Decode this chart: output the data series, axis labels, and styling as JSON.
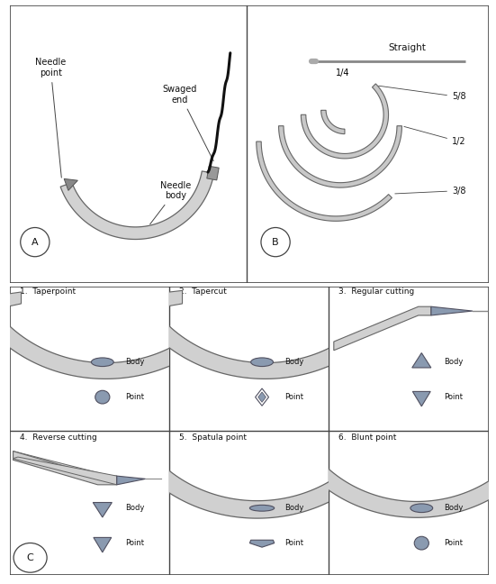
{
  "bg_color": "#ffffff",
  "text_color": "#000000",
  "needle_light": "#d0d0d0",
  "needle_mid": "#b0b0b0",
  "needle_dark": "#7a8a90",
  "needle_edge": "#606060",
  "suture_color": "#111111",
  "panel_titles": [
    "1.  Taperpoint",
    "2.  Tapercut",
    "3.  Regular cutting",
    "4.  Reverse cutting",
    "5.  Spatula point",
    "6.  Blunt point"
  ],
  "body_label": "Body",
  "point_label": "Point",
  "needle_point_label": "Needle\npoint",
  "swaged_end_label": "Swaged\nend",
  "needle_body_label": "Needle\nbody",
  "straight_label": "Straight",
  "label_A": "A",
  "label_B": "B",
  "label_C": "C"
}
